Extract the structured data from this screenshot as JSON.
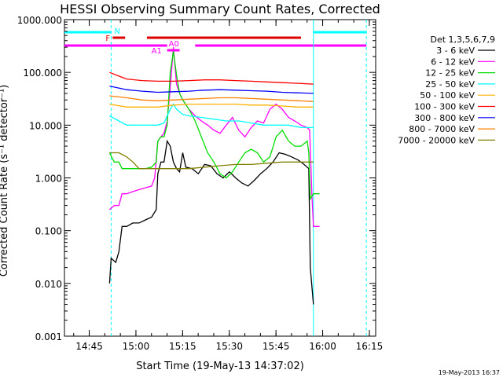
{
  "chart_data": {
    "type": "line",
    "title": "HESSI Observing Summary Count Rates, Corrected",
    "xlabel": "Start Time (19-May-13 14:37:02)",
    "ylabel": "Corrected Count Rate (s⁻¹ detector⁻¹)",
    "ylog": true,
    "ylim": [
      0.001,
      1000
    ],
    "xlim_minutes_after_14_37_02": [
      0,
      100
    ],
    "x_tick_labels": [
      "14:45",
      "15:00",
      "15:15",
      "15:30",
      "15:45",
      "16:00",
      "16:15"
    ],
    "y_tick_labels": [
      "0.001",
      "0.010",
      "0.100",
      "1.000",
      "10.000",
      "100.000",
      "1000.000"
    ],
    "timestamp": "19-May-2013 16:37",
    "legend_title": "Det 1,3,5,6,7,9",
    "legend_position": "right",
    "series": [
      {
        "name": "3 - 6 keV",
        "color": "#000000",
        "points": [
          [
            14.5,
            0.01
          ],
          [
            15,
            0.03
          ],
          [
            16.5,
            0.025
          ],
          [
            17.5,
            0.04
          ],
          [
            18.5,
            0.12
          ],
          [
            20,
            0.12
          ],
          [
            22,
            0.14
          ],
          [
            24,
            0.14
          ],
          [
            26,
            0.16
          ],
          [
            28,
            0.18
          ],
          [
            29.5,
            0.25
          ],
          [
            30,
            1.2
          ],
          [
            31,
            2.0
          ],
          [
            32,
            2.0
          ],
          [
            33,
            5
          ],
          [
            34,
            4
          ],
          [
            35,
            2
          ],
          [
            36,
            1.5
          ],
          [
            37,
            1.3
          ],
          [
            38,
            3
          ],
          [
            39,
            1.6
          ],
          [
            41,
            1.5
          ],
          [
            43,
            1.2
          ],
          [
            45,
            1.8
          ],
          [
            47,
            1.7
          ],
          [
            49,
            1.2
          ],
          [
            51,
            1.0
          ],
          [
            53,
            1.3
          ],
          [
            55,
            1.0
          ],
          [
            57,
            0.8
          ],
          [
            59,
            0.7
          ],
          [
            61,
            0.9
          ],
          [
            63,
            1.2
          ],
          [
            65,
            1.5
          ],
          [
            67,
            2.0
          ],
          [
            69,
            3.0
          ],
          [
            71,
            2.8
          ],
          [
            73,
            2.5
          ],
          [
            75,
            2.2
          ],
          [
            77,
            1.8
          ],
          [
            78.5,
            1.5
          ],
          [
            79,
            0.02
          ],
          [
            80,
            0.004
          ]
        ]
      },
      {
        "name": "6 - 12 keV",
        "color": "#ff00ff",
        "points": [
          [
            14.5,
            0.25
          ],
          [
            16,
            0.3
          ],
          [
            17.5,
            0.3
          ],
          [
            18.5,
            0.5
          ],
          [
            20,
            0.5
          ],
          [
            22,
            0.55
          ],
          [
            24,
            0.6
          ],
          [
            26,
            0.65
          ],
          [
            28,
            0.7
          ],
          [
            29,
            1.0
          ],
          [
            30,
            5
          ],
          [
            31,
            6
          ],
          [
            32,
            7
          ],
          [
            33,
            12
          ],
          [
            34,
            50
          ],
          [
            35,
            300
          ],
          [
            36,
            60
          ],
          [
            37,
            40
          ],
          [
            38,
            30
          ],
          [
            40,
            20
          ],
          [
            42,
            15
          ],
          [
            44,
            12
          ],
          [
            46,
            10
          ],
          [
            48,
            8
          ],
          [
            50,
            7
          ],
          [
            52,
            10
          ],
          [
            54,
            14
          ],
          [
            56,
            8
          ],
          [
            58,
            6
          ],
          [
            60,
            9
          ],
          [
            62,
            12
          ],
          [
            64,
            11
          ],
          [
            66,
            20
          ],
          [
            68,
            25
          ],
          [
            70,
            20
          ],
          [
            72,
            14
          ],
          [
            74,
            12
          ],
          [
            76,
            10
          ],
          [
            78,
            9
          ],
          [
            78.8,
            8
          ],
          [
            79.5,
            0.5
          ],
          [
            80,
            0.12
          ],
          [
            82,
            0.12
          ]
        ]
      },
      {
        "name": "12 - 25 keV",
        "color": "#00dd00",
        "points": [
          [
            14.5,
            3
          ],
          [
            16,
            2
          ],
          [
            17.5,
            2
          ],
          [
            18.5,
            1.5
          ],
          [
            20,
            1.5
          ],
          [
            22,
            1.5
          ],
          [
            24,
            1.5
          ],
          [
            26,
            1.5
          ],
          [
            28,
            1.6
          ],
          [
            29.5,
            2.0
          ],
          [
            30,
            5
          ],
          [
            31,
            6
          ],
          [
            32,
            6
          ],
          [
            33,
            10
          ],
          [
            34,
            100
          ],
          [
            35,
            250
          ],
          [
            36,
            90
          ],
          [
            37,
            40
          ],
          [
            38,
            30
          ],
          [
            40,
            20
          ],
          [
            42,
            12
          ],
          [
            44,
            6
          ],
          [
            46,
            3
          ],
          [
            48,
            2
          ],
          [
            50,
            1.2
          ],
          [
            52,
            1.0
          ],
          [
            54,
            1.3
          ],
          [
            56,
            2.0
          ],
          [
            58,
            3
          ],
          [
            60,
            3.5
          ],
          [
            62,
            3
          ],
          [
            64,
            2.0
          ],
          [
            66,
            2.5
          ],
          [
            68,
            6
          ],
          [
            70,
            8
          ],
          [
            72,
            5
          ],
          [
            74,
            4
          ],
          [
            76,
            4
          ],
          [
            78,
            5
          ],
          [
            78.5,
            3
          ],
          [
            79,
            0.4
          ],
          [
            80,
            0.5
          ],
          [
            82,
            0.5
          ]
        ]
      },
      {
        "name": "25 - 50 keV",
        "color": "#00ffff",
        "points": [
          [
            14.5,
            15
          ],
          [
            17.5,
            12
          ],
          [
            20,
            10
          ],
          [
            22,
            10
          ],
          [
            24,
            10
          ],
          [
            26,
            10
          ],
          [
            28,
            10
          ],
          [
            30,
            10
          ],
          [
            32,
            11
          ],
          [
            34,
            20
          ],
          [
            35,
            25
          ],
          [
            36,
            20
          ],
          [
            38,
            16
          ],
          [
            40,
            15
          ],
          [
            44,
            14
          ],
          [
            48,
            13
          ],
          [
            52,
            12
          ],
          [
            56,
            12
          ],
          [
            60,
            11
          ],
          [
            64,
            10
          ],
          [
            68,
            10
          ],
          [
            72,
            10
          ],
          [
            76,
            9
          ],
          [
            80,
            9
          ]
        ]
      },
      {
        "name": "50 - 100 keV",
        "color": "#ffb000",
        "points": [
          [
            14.5,
            25
          ],
          [
            20,
            22
          ],
          [
            25,
            22
          ],
          [
            30,
            22
          ],
          [
            35,
            24
          ],
          [
            40,
            25
          ],
          [
            45,
            25
          ],
          [
            50,
            25
          ],
          [
            55,
            25
          ],
          [
            60,
            24
          ],
          [
            65,
            24
          ],
          [
            70,
            23
          ],
          [
            75,
            22
          ],
          [
            80,
            22
          ]
        ]
      },
      {
        "name": "100 - 300 keV",
        "color": "#ff0000",
        "points": [
          [
            14.5,
            100
          ],
          [
            17.5,
            85
          ],
          [
            20,
            75
          ],
          [
            25,
            70
          ],
          [
            30,
            68
          ],
          [
            35,
            68
          ],
          [
            40,
            70
          ],
          [
            45,
            72
          ],
          [
            50,
            72
          ],
          [
            55,
            70
          ],
          [
            60,
            68
          ],
          [
            65,
            66
          ],
          [
            70,
            64
          ],
          [
            75,
            62
          ],
          [
            80,
            60
          ]
        ]
      },
      {
        "name": "300 - 800 keV",
        "color": "#0000ff",
        "points": [
          [
            14.5,
            55
          ],
          [
            20,
            47
          ],
          [
            25,
            44
          ],
          [
            30,
            42
          ],
          [
            35,
            43
          ],
          [
            40,
            44
          ],
          [
            45,
            46
          ],
          [
            50,
            47
          ],
          [
            55,
            46
          ],
          [
            60,
            45
          ],
          [
            65,
            44
          ],
          [
            70,
            42
          ],
          [
            75,
            41
          ],
          [
            80,
            40
          ]
        ]
      },
      {
        "name": "800 - 7000 keV",
        "color": "#ff8000",
        "points": [
          [
            14.5,
            36
          ],
          [
            20,
            33
          ],
          [
            25,
            30
          ],
          [
            30,
            29
          ],
          [
            35,
            30
          ],
          [
            40,
            31
          ],
          [
            45,
            32
          ],
          [
            50,
            33
          ],
          [
            55,
            33
          ],
          [
            60,
            32
          ],
          [
            65,
            31
          ],
          [
            70,
            30
          ],
          [
            75,
            29
          ],
          [
            80,
            28
          ]
        ]
      },
      {
        "name": "7000 - 20000 keV",
        "color": "#808000",
        "points": [
          [
            14.5,
            3
          ],
          [
            17.5,
            3
          ],
          [
            20,
            2.5
          ],
          [
            22,
            2.0
          ],
          [
            24,
            1.5
          ],
          [
            26,
            1.5
          ],
          [
            28,
            1.5
          ],
          [
            30,
            1.5
          ],
          [
            35,
            1.5
          ],
          [
            40,
            1.5
          ],
          [
            45,
            1.6
          ],
          [
            50,
            1.7
          ],
          [
            55,
            1.8
          ],
          [
            60,
            1.8
          ],
          [
            65,
            1.9
          ],
          [
            70,
            2.0
          ],
          [
            75,
            2.0
          ],
          [
            78,
            2.0
          ],
          [
            79,
            2.0
          ],
          [
            80,
            2.0
          ]
        ]
      }
    ],
    "flag_bars": [
      {
        "label": "N",
        "color": "#00ffff",
        "segments": [
          [
            0,
            15
          ],
          [
            80,
            97
          ]
        ]
      },
      {
        "label": "F",
        "color": "#dd0000",
        "segments": [
          [
            15.5,
            19.5
          ],
          [
            26.5,
            76
          ]
        ]
      },
      {
        "label": "A1",
        "color": "#ff00ff",
        "segments": [
          [
            0,
            33
          ],
          [
            42,
            97
          ]
        ]
      },
      {
        "label": "A0",
        "color": "#ff00ff",
        "segments": [
          [
            33,
            37
          ]
        ]
      }
    ],
    "vertical_lines": [
      {
        "x": 15,
        "color": "#00ffff",
        "style": "dashed"
      },
      {
        "x": 80,
        "color": "#00ffff",
        "style": "solid"
      },
      {
        "x": 97,
        "color": "#00ffff",
        "style": "dashed"
      }
    ]
  }
}
